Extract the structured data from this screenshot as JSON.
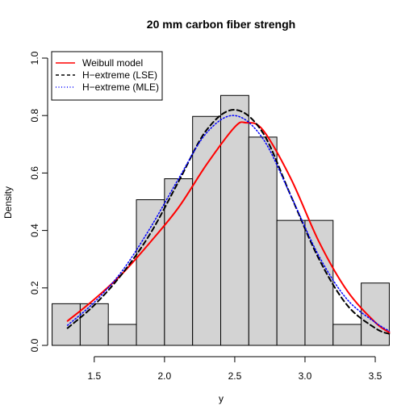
{
  "chart_data": {
    "type": "histogram",
    "title": "20 mm carbon fiber strengh",
    "xlabel": "y",
    "ylabel": "Density",
    "xlim": [
      1.2,
      3.6
    ],
    "ylim": [
      0,
      1.0
    ],
    "x_ticks": [
      1.5,
      2.0,
      2.5,
      3.0,
      3.5
    ],
    "x_tick_labels": [
      "1.5",
      "2.0",
      "2.5",
      "3.0",
      "3.5"
    ],
    "y_ticks": [
      0.0,
      0.2,
      0.4,
      0.6,
      0.8,
      1.0
    ],
    "y_tick_labels": [
      "0.0",
      "0.2",
      "0.4",
      "0.6",
      "0.8",
      "1.0"
    ],
    "bar_color": "#d3d3d3",
    "bins": [
      {
        "x0": 1.2,
        "x1": 1.4,
        "density": 0.145
      },
      {
        "x0": 1.4,
        "x1": 1.6,
        "density": 0.145
      },
      {
        "x0": 1.6,
        "x1": 1.8,
        "density": 0.073
      },
      {
        "x0": 1.8,
        "x1": 2.0,
        "density": 0.507
      },
      {
        "x0": 2.0,
        "x1": 2.2,
        "density": 0.58
      },
      {
        "x0": 2.2,
        "x1": 2.4,
        "density": 0.797
      },
      {
        "x0": 2.4,
        "x1": 2.6,
        "density": 0.87
      },
      {
        "x0": 2.6,
        "x1": 2.8,
        "density": 0.725
      },
      {
        "x0": 2.8,
        "x1": 3.0,
        "density": 0.435
      },
      {
        "x0": 3.0,
        "x1": 3.2,
        "density": 0.435
      },
      {
        "x0": 3.2,
        "x1": 3.4,
        "density": 0.073
      },
      {
        "x0": 3.4,
        "x1": 3.6,
        "density": 0.217
      }
    ],
    "series": [
      {
        "name": "Weibull model",
        "color": "#ff0000",
        "dash": "solid",
        "x": [
          1.31,
          1.5,
          1.7,
          1.9,
          2.1,
          2.3,
          2.5,
          2.58,
          2.7,
          2.9,
          3.1,
          3.3,
          3.5,
          3.6
        ],
        "y": [
          0.085,
          0.16,
          0.25,
          0.36,
          0.48,
          0.63,
          0.76,
          0.775,
          0.75,
          0.58,
          0.36,
          0.19,
          0.08,
          0.045
        ]
      },
      {
        "name": "H−extreme (LSE)",
        "color": "#000000",
        "dash": "dashed",
        "x": [
          1.31,
          1.5,
          1.7,
          1.9,
          2.1,
          2.3,
          2.5,
          2.7,
          2.9,
          3.1,
          3.3,
          3.5,
          3.6
        ],
        "y": [
          0.06,
          0.14,
          0.25,
          0.39,
          0.57,
          0.75,
          0.82,
          0.74,
          0.52,
          0.3,
          0.14,
          0.06,
          0.04
        ]
      },
      {
        "name": "H−extreme (MLE)",
        "color": "#0000ff",
        "dash": "dotted",
        "x": [
          1.31,
          1.5,
          1.7,
          1.9,
          2.1,
          2.3,
          2.5,
          2.7,
          2.9,
          3.1,
          3.3,
          3.5,
          3.6
        ],
        "y": [
          0.07,
          0.15,
          0.26,
          0.41,
          0.58,
          0.74,
          0.8,
          0.72,
          0.52,
          0.31,
          0.16,
          0.08,
          0.05
        ]
      }
    ],
    "legend_position": "top-left"
  }
}
